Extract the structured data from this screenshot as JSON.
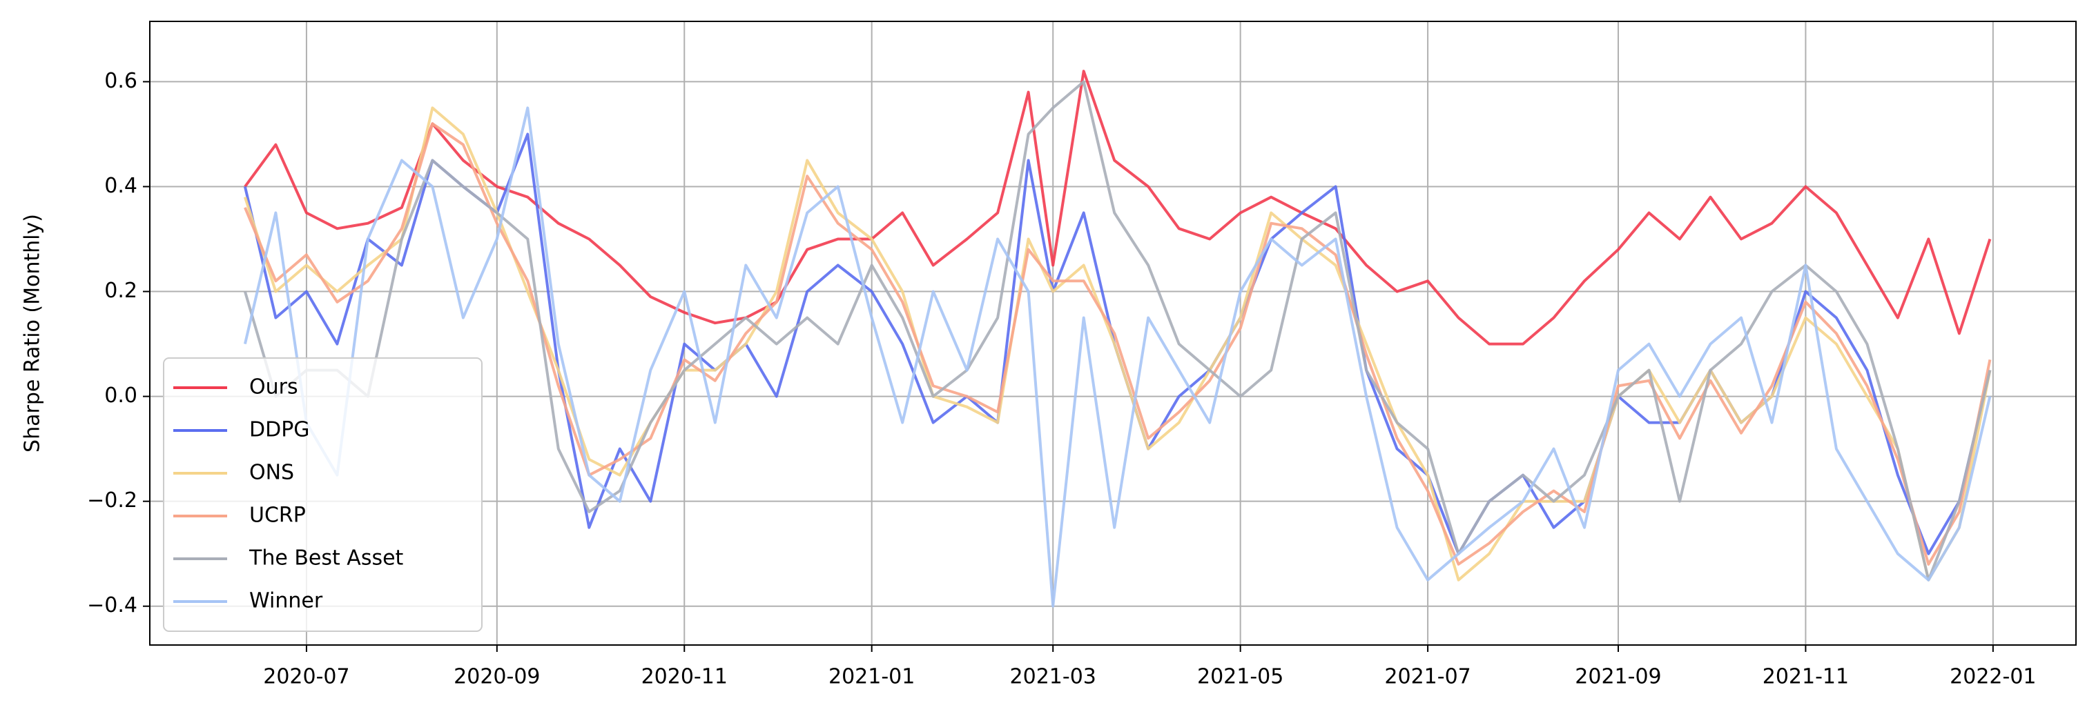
{
  "chart_data": {
    "type": "line",
    "ylabel": "Sharpe Ratio (Monthly)",
    "x": [
      "2020-06-11",
      "2020-06-21",
      "2020-07-01",
      "2020-07-11",
      "2020-07-21",
      "2020-08-01",
      "2020-08-11",
      "2020-08-21",
      "2020-09-01",
      "2020-09-11",
      "2020-09-21",
      "2020-10-01",
      "2020-10-11",
      "2020-10-21",
      "2020-11-01",
      "2020-11-11",
      "2020-11-21",
      "2020-12-01",
      "2020-12-11",
      "2020-12-21",
      "2021-01-01",
      "2021-01-11",
      "2021-01-21",
      "2021-02-01",
      "2021-02-11",
      "2021-02-21",
      "2021-03-01",
      "2021-03-11",
      "2021-03-21",
      "2021-04-01",
      "2021-04-11",
      "2021-04-21",
      "2021-05-01",
      "2021-05-11",
      "2021-05-21",
      "2021-06-01",
      "2021-06-11",
      "2021-06-21",
      "2021-07-01",
      "2021-07-11",
      "2021-07-21",
      "2021-08-01",
      "2021-08-11",
      "2021-08-21",
      "2021-09-01",
      "2021-09-11",
      "2021-09-21",
      "2021-10-01",
      "2021-10-11",
      "2021-10-21",
      "2021-11-01",
      "2021-11-11",
      "2021-11-21",
      "2021-12-01",
      "2021-12-11",
      "2021-12-21",
      "2021-12-31"
    ],
    "series": [
      {
        "name": "Ours",
        "color": "#f23b4f",
        "values": [
          0.4,
          0.48,
          0.35,
          0.32,
          0.33,
          0.36,
          0.52,
          0.45,
          0.4,
          0.38,
          0.33,
          0.3,
          0.25,
          0.19,
          0.16,
          0.14,
          0.15,
          0.18,
          0.28,
          0.3,
          0.3,
          0.35,
          0.25,
          0.3,
          0.35,
          0.58,
          0.25,
          0.62,
          0.45,
          0.4,
          0.32,
          0.3,
          0.35,
          0.38,
          0.35,
          0.32,
          0.25,
          0.2,
          0.22,
          0.15,
          0.1,
          0.1,
          0.15,
          0.22,
          0.28,
          0.35,
          0.3,
          0.38,
          0.3,
          0.33,
          0.4,
          0.35,
          0.25,
          0.15,
          0.3,
          0.12,
          0.3
        ]
      },
      {
        "name": "DDPG",
        "color": "#5b6ef0",
        "values": [
          0.4,
          0.15,
          0.2,
          0.1,
          0.3,
          0.25,
          0.45,
          0.4,
          0.35,
          0.5,
          0.05,
          -0.25,
          -0.1,
          -0.2,
          0.1,
          0.05,
          0.1,
          0.0,
          0.2,
          0.25,
          0.2,
          0.1,
          -0.05,
          0.0,
          -0.05,
          0.45,
          0.2,
          0.35,
          0.1,
          -0.1,
          0.0,
          0.05,
          0.15,
          0.3,
          0.35,
          0.4,
          0.05,
          -0.1,
          -0.15,
          -0.3,
          -0.2,
          -0.15,
          -0.25,
          -0.2,
          0.0,
          -0.05,
          -0.05,
          0.05,
          -0.05,
          0.0,
          0.2,
          0.15,
          0.05,
          -0.15,
          -0.3,
          -0.2,
          0.05
        ]
      },
      {
        "name": "ONS",
        "color": "#f5d48a",
        "values": [
          0.38,
          0.2,
          0.25,
          0.2,
          0.25,
          0.3,
          0.55,
          0.5,
          0.35,
          0.2,
          0.05,
          -0.12,
          -0.15,
          -0.05,
          0.05,
          0.05,
          0.1,
          0.2,
          0.45,
          0.35,
          0.3,
          0.2,
          0.0,
          -0.02,
          -0.05,
          0.3,
          0.2,
          0.25,
          0.1,
          -0.1,
          -0.05,
          0.05,
          0.15,
          0.35,
          0.3,
          0.25,
          0.1,
          -0.05,
          -0.15,
          -0.35,
          -0.3,
          -0.2,
          -0.2,
          -0.2,
          0.0,
          0.05,
          -0.05,
          0.05,
          -0.05,
          0.0,
          0.15,
          0.1,
          0.0,
          -0.1,
          -0.35,
          -0.25,
          0.05
        ]
      },
      {
        "name": "UCRP",
        "color": "#f8a58a",
        "values": [
          0.36,
          0.22,
          0.27,
          0.18,
          0.22,
          0.32,
          0.52,
          0.48,
          0.33,
          0.22,
          0.02,
          -0.15,
          -0.12,
          -0.08,
          0.07,
          0.03,
          0.12,
          0.18,
          0.42,
          0.33,
          0.28,
          0.18,
          0.02,
          0.0,
          -0.03,
          0.28,
          0.22,
          0.22,
          0.12,
          -0.08,
          -0.03,
          0.03,
          0.13,
          0.33,
          0.32,
          0.27,
          0.08,
          -0.08,
          -0.18,
          -0.32,
          -0.28,
          -0.22,
          -0.18,
          -0.22,
          0.02,
          0.03,
          -0.08,
          0.03,
          -0.07,
          0.02,
          0.18,
          0.12,
          0.02,
          -0.12,
          -0.32,
          -0.22,
          0.07
        ]
      },
      {
        "name": "The Best Asset",
        "color": "#a9aeb8",
        "values": [
          0.2,
          0.0,
          0.05,
          0.05,
          0.0,
          0.3,
          0.45,
          0.4,
          0.35,
          0.3,
          -0.1,
          -0.22,
          -0.18,
          -0.05,
          0.05,
          0.1,
          0.15,
          0.1,
          0.15,
          0.1,
          0.25,
          0.15,
          0.0,
          0.05,
          0.15,
          0.5,
          0.55,
          0.6,
          0.35,
          0.25,
          0.1,
          0.05,
          0.0,
          0.05,
          0.3,
          0.35,
          0.05,
          -0.05,
          -0.1,
          -0.3,
          -0.2,
          -0.15,
          -0.2,
          -0.15,
          0.0,
          0.05,
          -0.2,
          0.05,
          0.1,
          0.2,
          0.25,
          0.2,
          0.1,
          -0.1,
          -0.35,
          -0.2,
          0.05
        ]
      },
      {
        "name": "Winner",
        "color": "#a6c4f5",
        "values": [
          0.1,
          0.35,
          -0.05,
          -0.15,
          0.3,
          0.45,
          0.4,
          0.15,
          0.3,
          0.55,
          0.1,
          -0.15,
          -0.2,
          0.05,
          0.2,
          -0.05,
          0.25,
          0.15,
          0.35,
          0.4,
          0.15,
          -0.05,
          0.2,
          0.05,
          0.3,
          0.2,
          -0.4,
          0.15,
          -0.25,
          0.15,
          0.05,
          -0.05,
          0.2,
          0.3,
          0.25,
          0.3,
          0.0,
          -0.25,
          -0.35,
          -0.3,
          -0.25,
          -0.2,
          -0.1,
          -0.25,
          0.05,
          0.1,
          0.0,
          0.1,
          0.15,
          -0.05,
          0.25,
          -0.1,
          -0.2,
          -0.3,
          -0.35,
          -0.25,
          0.0
        ]
      }
    ],
    "xlim": [
      "2020-05-11",
      "2022-01-28"
    ],
    "xticks": [
      "2020-07",
      "2020-09",
      "2020-11",
      "2021-01",
      "2021-03",
      "2021-05",
      "2021-07",
      "2021-09",
      "2021-11",
      "2022-01"
    ],
    "ylim": [
      -0.474,
      0.715
    ],
    "yticks": [
      {
        "value": -0.4,
        "label": "−0.4"
      },
      {
        "value": -0.2,
        "label": "−0.2"
      },
      {
        "value": 0,
        "label": "0.0"
      },
      0.2,
      0.4,
      0.6
    ],
    "grid": true,
    "legend": "lower left"
  }
}
